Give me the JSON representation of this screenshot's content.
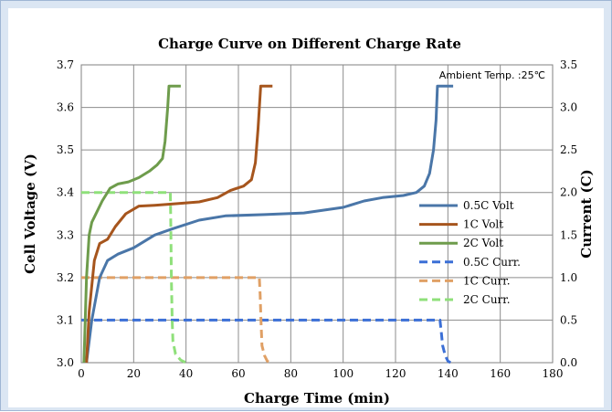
{
  "chart_data": {
    "type": "line",
    "title": "Charge Curve on Different Charge Rate",
    "xlabel": "Charge Time (min)",
    "ylabel": "Cell Voltage (V)",
    "y2label": "Current (C)",
    "annotation": "Ambient Temp. :25℃",
    "xlim": [
      0,
      180
    ],
    "ylim": [
      3.0,
      3.7
    ],
    "y2lim": [
      0.0,
      3.5
    ],
    "xticks": [
      "0",
      "20",
      "40",
      "60",
      "80",
      "100",
      "120",
      "140",
      "160",
      "180"
    ],
    "yticks": [
      "3.0",
      "3.1",
      "3.2",
      "3.3",
      "3.4",
      "3.5",
      "3.6",
      "3.7"
    ],
    "y2ticks": [
      "0.0",
      "0.5",
      "1.0",
      "1.5",
      "2.0",
      "2.5",
      "3.0",
      "3.5"
    ],
    "grid": true,
    "legend_position": "right",
    "series": [
      {
        "name": "0.5C Volt",
        "axis": "left",
        "color": "#4a76a8",
        "dash": false,
        "points": [
          [
            2,
            3.0
          ],
          [
            4,
            3.1
          ],
          [
            7,
            3.2
          ],
          [
            10,
            3.24
          ],
          [
            14,
            3.255
          ],
          [
            20,
            3.27
          ],
          [
            28,
            3.3
          ],
          [
            35,
            3.315
          ],
          [
            45,
            3.335
          ],
          [
            55,
            3.345
          ],
          [
            70,
            3.348
          ],
          [
            85,
            3.352
          ],
          [
            100,
            3.365
          ],
          [
            108,
            3.38
          ],
          [
            115,
            3.388
          ],
          [
            123,
            3.393
          ],
          [
            128,
            3.4
          ],
          [
            131,
            3.415
          ],
          [
            133,
            3.445
          ],
          [
            134.5,
            3.5
          ],
          [
            135.5,
            3.57
          ],
          [
            136,
            3.65
          ],
          [
            142,
            3.65
          ]
        ]
      },
      {
        "name": "1C Volt",
        "axis": "left",
        "color": "#a6551d",
        "dash": false,
        "points": [
          [
            2,
            3.0
          ],
          [
            3,
            3.12
          ],
          [
            5,
            3.24
          ],
          [
            7,
            3.28
          ],
          [
            10,
            3.29
          ],
          [
            13,
            3.32
          ],
          [
            17,
            3.35
          ],
          [
            22,
            3.368
          ],
          [
            28,
            3.37
          ],
          [
            35,
            3.373
          ],
          [
            45,
            3.378
          ],
          [
            52,
            3.388
          ],
          [
            57,
            3.405
          ],
          [
            62,
            3.415
          ],
          [
            65,
            3.43
          ],
          [
            66.5,
            3.47
          ],
          [
            67.5,
            3.55
          ],
          [
            68.5,
            3.65
          ],
          [
            73,
            3.65
          ]
        ]
      },
      {
        "name": "2C Volt",
        "axis": "left",
        "color": "#6e9c4c",
        "dash": false,
        "points": [
          [
            1,
            3.0
          ],
          [
            2,
            3.2
          ],
          [
            3,
            3.3
          ],
          [
            4,
            3.33
          ],
          [
            6,
            3.355
          ],
          [
            8,
            3.38
          ],
          [
            11,
            3.41
          ],
          [
            14,
            3.42
          ],
          [
            18,
            3.425
          ],
          [
            22,
            3.435
          ],
          [
            26,
            3.45
          ],
          [
            29,
            3.465
          ],
          [
            31,
            3.48
          ],
          [
            32,
            3.52
          ],
          [
            33,
            3.6
          ],
          [
            33.5,
            3.65
          ],
          [
            38,
            3.65
          ]
        ]
      },
      {
        "name": "0.5C Curr.",
        "axis": "right",
        "color": "#3b6fd6",
        "dash": true,
        "points": [
          [
            0,
            0.5
          ],
          [
            137,
            0.5
          ],
          [
            137.5,
            0.35
          ],
          [
            138,
            0.2
          ],
          [
            139,
            0.08
          ],
          [
            140,
            0.02
          ],
          [
            141,
            0.0
          ]
        ]
      },
      {
        "name": "1C Curr.",
        "axis": "right",
        "color": "#e0a065",
        "dash": true,
        "points": [
          [
            0,
            1.0
          ],
          [
            68,
            1.0
          ],
          [
            68.3,
            0.8
          ],
          [
            68.6,
            0.5
          ],
          [
            69,
            0.2
          ],
          [
            70,
            0.08
          ],
          [
            71,
            0.02
          ],
          [
            72,
            0.0
          ]
        ]
      },
      {
        "name": "2C Curr.",
        "axis": "right",
        "color": "#8fe07a",
        "dash": true,
        "points": [
          [
            0,
            2.0
          ],
          [
            34,
            2.0
          ],
          [
            34.2,
            1.6
          ],
          [
            34.4,
            1.0
          ],
          [
            34.7,
            0.5
          ],
          [
            35,
            0.25
          ],
          [
            36,
            0.1
          ],
          [
            38,
            0.03
          ],
          [
            40,
            0.0
          ]
        ]
      }
    ]
  }
}
